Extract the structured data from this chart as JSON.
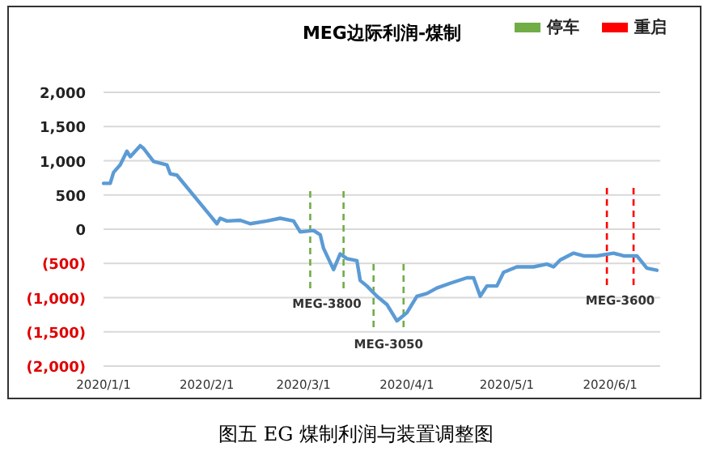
{
  "chart_data": {
    "type": "line",
    "title": "MEG边际利润-煤制",
    "x": [
      "2020-01-01",
      "2020-01-03",
      "2020-01-04",
      "2020-01-06",
      "2020-01-08",
      "2020-01-09",
      "2020-01-12",
      "2020-01-13",
      "2020-01-16",
      "2020-01-20",
      "2020-01-21",
      "2020-01-23",
      "2020-02-04",
      "2020-02-05",
      "2020-02-07",
      "2020-02-11",
      "2020-02-14",
      "2020-02-19",
      "2020-02-23",
      "2020-02-27",
      "2020-02-29",
      "2020-03-04",
      "2020-03-06",
      "2020-03-07",
      "2020-03-10",
      "2020-03-12",
      "2020-03-14",
      "2020-03-17",
      "2020-03-18",
      "2020-03-20",
      "2020-03-23",
      "2020-03-26",
      "2020-03-29",
      "2020-04-01",
      "2020-04-04",
      "2020-04-07",
      "2020-04-10",
      "2020-04-14",
      "2020-04-19",
      "2020-04-21",
      "2020-04-23",
      "2020-04-25",
      "2020-04-28",
      "2020-04-30",
      "2020-05-04",
      "2020-05-09",
      "2020-05-13",
      "2020-05-15",
      "2020-05-17",
      "2020-05-21",
      "2020-05-24",
      "2020-05-28",
      "2020-06-02",
      "2020-06-05",
      "2020-06-09",
      "2020-06-12",
      "2020-06-15"
    ],
    "series": [
      {
        "color": "#5b9bd5",
        "values": [
          670,
          670,
          830,
          940,
          1140,
          1060,
          1220,
          1180,
          990,
          940,
          810,
          790,
          80,
          160,
          120,
          130,
          80,
          120,
          160,
          120,
          -40,
          -20,
          -80,
          -280,
          -590,
          -360,
          -430,
          -460,
          -750,
          -830,
          -980,
          -1100,
          -1340,
          -1220,
          -980,
          -940,
          -860,
          -790,
          -710,
          -710,
          -980,
          -830,
          -830,
          -630,
          -550,
          -550,
          -510,
          -550,
          -450,
          -350,
          -390,
          -390,
          -350,
          -390,
          -390,
          -570,
          -600
        ]
      }
    ],
    "xlim": [
      "2020-01-01",
      "2020-06-16"
    ],
    "xticks": [
      {
        "value": "2020-01-01",
        "label": "2020/1/1"
      },
      {
        "value": "2020-02-01",
        "label": "2020/2/1"
      },
      {
        "value": "2020-03-01",
        "label": "2020/3/1"
      },
      {
        "value": "2020-04-01",
        "label": "2020/4/1"
      },
      {
        "value": "2020-05-01",
        "label": "2020/5/1"
      },
      {
        "value": "2020-06-01",
        "label": "2020/6/1"
      }
    ],
    "ylim": [
      -2000,
      2000
    ],
    "yticks": [
      {
        "value": 2000,
        "label": "2,000"
      },
      {
        "value": 1500,
        "label": "1,500"
      },
      {
        "value": 1000,
        "label": "1,000"
      },
      {
        "value": 500,
        "label": "500"
      },
      0,
      {
        "value": -500,
        "label": "(500)"
      },
      {
        "value": -1000,
        "label": "(1,000)"
      },
      {
        "value": -1500,
        "label": "(1,500)"
      },
      {
        "value": -2000,
        "label": "(2,000)"
      }
    ],
    "grid": "y",
    "marker": "none",
    "line_style": "solid",
    "legend": "top right",
    "ref_lines": [
      {
        "axis": "x",
        "value": "2020-03-03",
        "label": "停车",
        "color": "#70ad47",
        "line_style": "dashed"
      },
      {
        "axis": "x",
        "value": "2020-03-13",
        "color": "#70ad47",
        "line_style": "dashed"
      },
      {
        "axis": "x",
        "value": "2020-03-22",
        "color": "#70ad47",
        "line_style": "dashed"
      },
      {
        "axis": "x",
        "value": "2020-03-31",
        "color": "#70ad47",
        "line_style": "dashed"
      },
      {
        "axis": "x",
        "value": "2020-05-31",
        "label": "重启",
        "color": "#ff0000",
        "line_style": "dashed"
      },
      {
        "axis": "x",
        "value": "2020-06-08",
        "color": "#ff0000",
        "line_style": "dashed"
      }
    ],
    "annotations": [
      "MEG-3800",
      "MEG-3050",
      "MEG-3600",
      "图五 EG 煤制利润与装置调整图"
    ]
  }
}
